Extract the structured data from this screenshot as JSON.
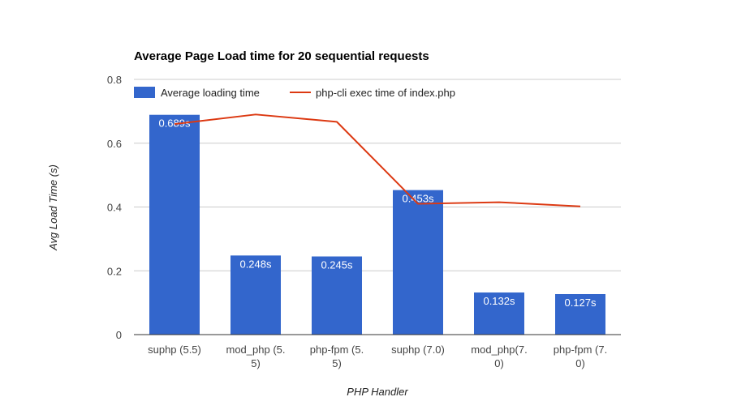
{
  "chart_data": {
    "type": "bar",
    "title": "Average Page Load time for 20 sequential requests",
    "xlabel": "PHP Handler",
    "ylabel": "Avg Load Time (s)",
    "ylim": [
      0,
      0.8
    ],
    "yticks": [
      "0",
      "0.2",
      "0.4",
      "0.6",
      "0.8"
    ],
    "categories": [
      [
        "suphp (5.5)"
      ],
      [
        "mod_php (5.",
        "5)"
      ],
      [
        "php-fpm (5.",
        "5)"
      ],
      [
        "suphp (7.0)"
      ],
      [
        "mod_php(7.",
        "0)"
      ],
      [
        "php-fpm (7.",
        "0)"
      ]
    ],
    "series": [
      {
        "name": "Average loading time",
        "type": "bar",
        "color": "#3366cc",
        "values": [
          0.689,
          0.248,
          0.245,
          0.453,
          0.132,
          0.127
        ],
        "labels": [
          "0.689s",
          "0.248s",
          "0.245s",
          "0.453s",
          "0.132s",
          "0.127s"
        ]
      },
      {
        "name": "php-cli exec time of index.php",
        "type": "line",
        "color": "#dc3912",
        "values": [
          0.66,
          0.69,
          0.667,
          0.41,
          0.415,
          0.402
        ]
      }
    ],
    "grid": true,
    "legend_position": "top"
  }
}
